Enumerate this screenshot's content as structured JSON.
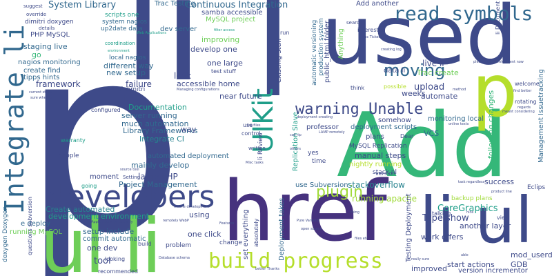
{
  "palette": {
    "dark_blue": "#3e4a89",
    "indigo": "#46327e",
    "purple": "#440154",
    "blue": "#31688e",
    "teal_blue": "#26828e",
    "teal": "#1f9e89",
    "green": "#35b779",
    "light_green": "#6ece58",
    "lime": "#b5de2b",
    "yellow_green": "#a0da39"
  },
  "words": {
    "p_big": "p",
    "li_top": "li",
    "l_top": "l",
    "used": "used",
    "add": "Add",
    "href": "href",
    "li_ul": "li ul",
    "ul_li_bottom": "ul li",
    "p_right": "p",
    "developers": "developers",
    "integrate_li": "Integrate li",
    "ukit": "UIKit",
    "warning_unable": "warning Unable",
    "build_progress": "build progress",
    "read_symbols": "read symbols",
    "moving": "moving",
    "plugin": "plugin",
    "system_library": "System Library",
    "continuous_integration": "Continuous Integration",
    "documentation": "Documentation",
    "library_frameworks": "Library Frameworks",
    "integrate_ci": "Integrate CI",
    "project_management": "Project Management",
    "create_automated": "Create automated",
    "development_environment": "development environment",
    "coregraphics": "CoreGraphics",
    "type_show": "Type show",
    "stackoverflow": "stackoverflow",
    "running_apache": "running apache",
    "upload": "upload",
    "framework": "framework",
    "live_li": "live li",
    "trac_create": "Trac create",
    "php_mysql": "PHP MySQL",
    "staging_live": "staging live",
    "nagios_monitoring": "nagios monitoring",
    "create_find": "create find",
    "tipps_hints": "tipps hints",
    "go": "go",
    "develop_one": "develop one",
    "improving": "improving",
    "one_large": "one large",
    "new_setup": "new setup",
    "different_way": "different way",
    "local_nagios": "local nagios",
    "coordination": "coordination",
    "dev_server": "dev server",
    "trac_testing": "Trac Testing",
    "mysql_project": "MySQL project",
    "scripts_one": "scripts one",
    "system_nagios": "system nagios",
    "up2date_data": "up2date data",
    "samba_accessible": "samba accessible",
    "near_future": "near future",
    "server_running": "server running",
    "much_automation": "much automation",
    "test": "test",
    "way": "way",
    "automated_deployment": "automated deployment",
    "mainly_develop": "mainly develop",
    "large_php": "large PHP",
    "moment": "moment",
    "failure": "failure",
    "accessible_home": "accessible home",
    "look": "look",
    "setup_include": "setup include",
    "commit_automatic": "commit automatic",
    "one_dev": "one dev",
    "tool": "tool",
    "one_click": "one click",
    "using": "using",
    "e_deploy": "e deploy",
    "running_mysql": "running MySQL",
    "doxygen_doxygen": "doxygen Doxygen",
    "deployment_takes": "Deployment takes",
    "replication_slave": "Replication Slave",
    "manual_steps": "manual steps",
    "nightly_running": "nightly running",
    "use_subversion": "use Subversion",
    "mysql_replication": "MySQL Replication",
    "plans": "plans",
    "vcs": "VCS",
    "gdb": "GDB",
    "mod_userdir": "mod_userdir",
    "success": "success",
    "start_actions": "start actions",
    "version_incrementor": "version incrementor",
    "improved": "improved",
    "work_offers": "work offers",
    "another_layer": "another layer",
    "management_issuetracking": "Management Issuetracking",
    "following_changes": "following changes",
    "testing_deployment": "Testing Deployment",
    "automate": "automate",
    "weeks": "weeks",
    "monitoring_local": "monitoring local",
    "deployment_scripts": "deployment scripts",
    "somehow": "somehow",
    "professor": "professor",
    "data_li": "data li",
    "possible": "possible",
    "think": "think",
    "interested": "interested",
    "public_html_folder": "public_html folder",
    "automatic_versioning": "automatic versioning",
    "production_system": "production system",
    "existing_stuff": "existing stuff",
    "anything": "Anything",
    "add_another": "Add another",
    "li_document": "li Document",
    "found": "Found",
    "rotating": "rotating",
    "welcome": "welcome",
    "eclips": "Eclips",
    "backup_plans": "backup plans",
    "talking": "talking",
    "view": "view",
    "configured": "configured",
    "recommended": "recommended",
    "looking": "looking",
    "setting": "Setting",
    "set_everything": "set everything",
    "problem": "problem",
    "change": "change",
    "absolutely": "absolutely",
    "yes": "yes",
    "time": "time",
    "version": "version",
    "dear": "Dear",
    "stack_nl": "stack nl",
    "nl_dimitri": "nl dimitri",
    "suggest": "suggest",
    "override": "override",
    "dimitri_doxygen": "dimitri doxygen",
    "details": "details",
    "search": "search",
    "run": "run",
    "li_review": "li Review",
    "people": "people",
    "warranty": "warranty",
    "questions_subversion": "questions subversion",
    "going": "going",
    "build": "build",
    "use": "use",
    "control": "control",
    "written": "written",
    "test_stuff": "test stuff",
    "small_1": "Web Applications",
    "small_2": "current stack",
    "small_3": "sure whether",
    "small_4": "Managing configurations",
    "small_5": "iPhone development",
    "small_6": "remotely WebP",
    "small_7": "Applications particularly",
    "small_8": "Database schema",
    "small_9": "better Thanks",
    "small_10": "Pure Variants",
    "small_11": "open source",
    "small_12": "files etc",
    "small_13": "please tell",
    "small_14": "development now",
    "small_15": "meant considering",
    "small_16": "find better",
    "small_17": "online texts",
    "small_18": "task regardless",
    "small_19": "product line",
    "small_20": "really sure",
    "small_21": "deployment creating",
    "small_22": "LAMP remotely",
    "small_23": "Misc tasks",
    "small_24": "log files",
    "small_25": "call rip",
    "small_26": "Trac Ticket",
    "small_27": "Net",
    "small_28": "source tool",
    "small_29": "able",
    "small_30": "nice",
    "small_31": "thing",
    "small_32": "others",
    "small_33": "creating log",
    "small_34": "method",
    "small_35": "regards",
    "small_36": "environment",
    "small_37": "filter access",
    "small_38": "Features"
  }
}
